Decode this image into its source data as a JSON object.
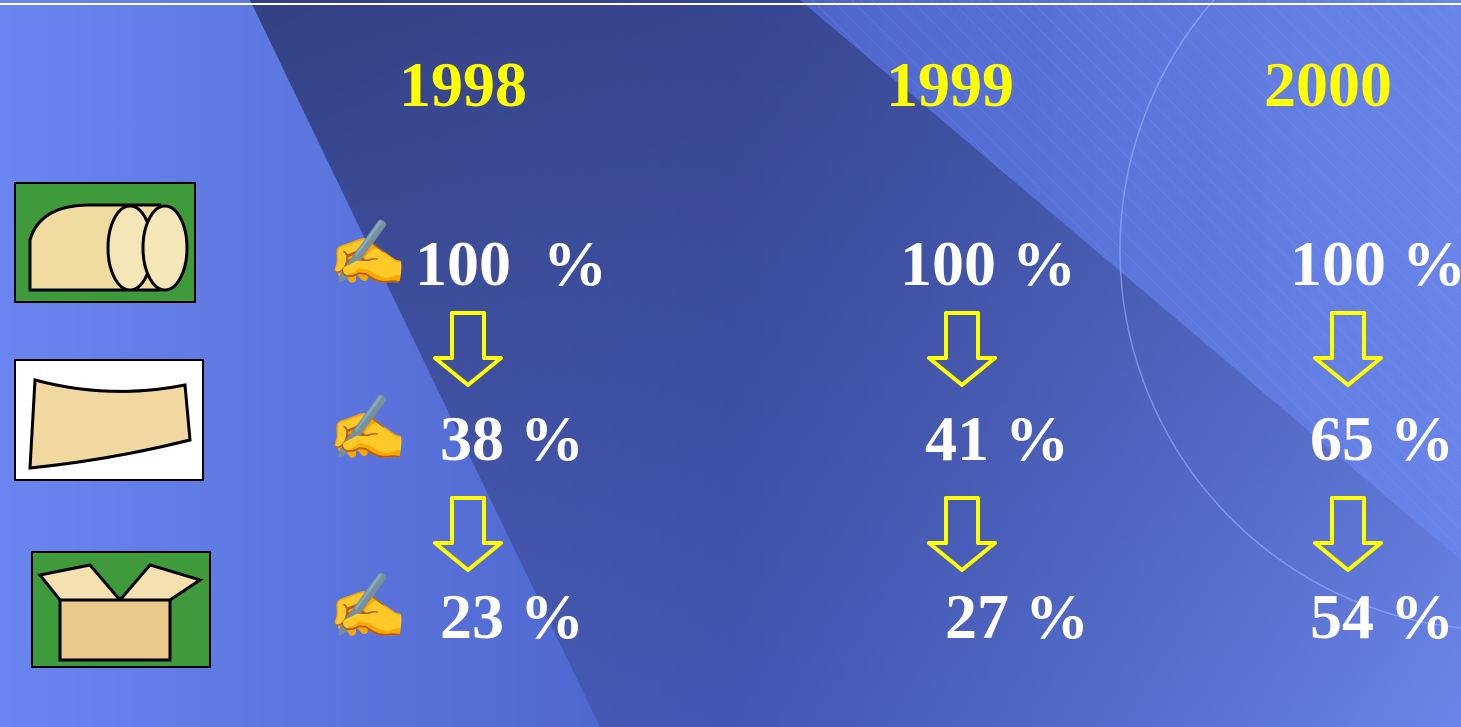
{
  "columns": [
    {
      "year": "1998",
      "values": [
        "100  %",
        "38 %",
        "23 %"
      ]
    },
    {
      "year": "1999",
      "values": [
        "100 %",
        "41 %",
        "27 %"
      ]
    },
    {
      "year": "2000",
      "values": [
        "100 %",
        "65 %",
        "54 %"
      ]
    }
  ]
}
